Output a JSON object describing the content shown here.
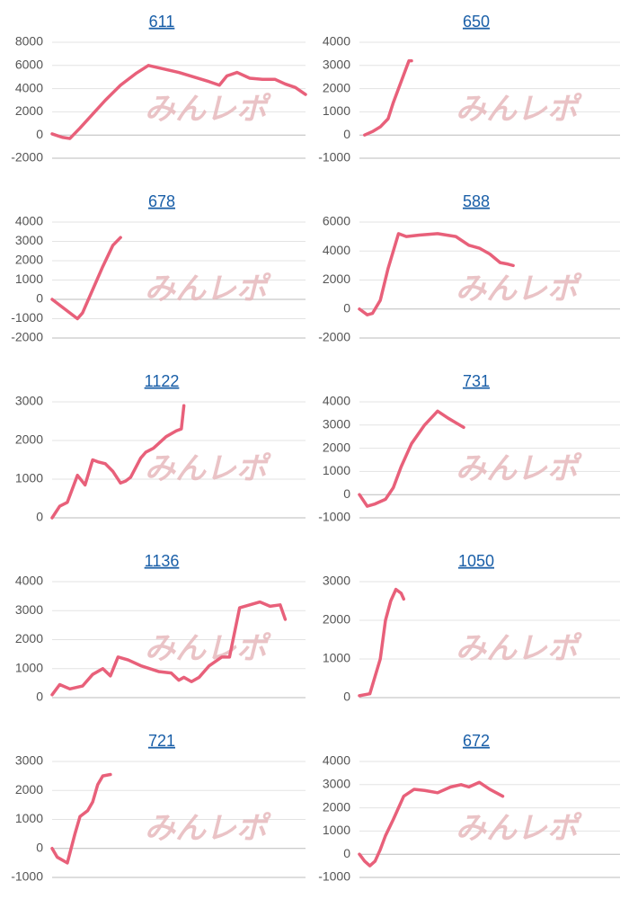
{
  "watermark": "みんレポ",
  "chart_data": [
    {
      "type": "line",
      "title": "611",
      "color": "#e8607a",
      "xlim": [
        0,
        100
      ],
      "ylim": [
        -2000,
        8000
      ],
      "yticks": [
        -2000,
        0,
        2000,
        4000,
        6000,
        8000
      ],
      "x": [
        0,
        4,
        7,
        11,
        16,
        21,
        27,
        33,
        38,
        44,
        50,
        56,
        62,
        66,
        69,
        73,
        78,
        83,
        88,
        92,
        96,
        100
      ],
      "values": [
        100,
        -200,
        -300,
        600,
        1800,
        3000,
        4300,
        5300,
        6000,
        5700,
        5400,
        5000,
        4600,
        4300,
        5100,
        5400,
        4900,
        4800,
        4800,
        4400,
        4100,
        3500
      ]
    },
    {
      "type": "line",
      "title": "650",
      "color": "#e8607a",
      "xlim": [
        0,
        100
      ],
      "ylim": [
        -1000,
        4000
      ],
      "yticks": [
        -1000,
        0,
        1000,
        2000,
        3000,
        4000
      ],
      "x": [
        2,
        5,
        8,
        11,
        13,
        15,
        17,
        19,
        20
      ],
      "values": [
        0,
        150,
        350,
        700,
        1400,
        2000,
        2600,
        3200,
        3200
      ]
    },
    {
      "type": "line",
      "title": "678",
      "color": "#e8607a",
      "xlim": [
        0,
        100
      ],
      "ylim": [
        -2000,
        4000
      ],
      "yticks": [
        -2000,
        -1000,
        0,
        1000,
        2000,
        3000,
        4000
      ],
      "x": [
        0,
        5,
        10,
        12,
        16,
        20,
        24,
        27
      ],
      "values": [
        0,
        -500,
        -1000,
        -700,
        500,
        1700,
        2800,
        3200
      ]
    },
    {
      "type": "line",
      "title": "588",
      "color": "#e8607a",
      "xlim": [
        0,
        100
      ],
      "ylim": [
        -2000,
        6000
      ],
      "yticks": [
        -2000,
        0,
        2000,
        4000,
        6000
      ],
      "x": [
        0,
        3,
        5,
        8,
        11,
        15,
        18,
        23,
        30,
        37,
        42,
        46,
        50,
        54,
        57,
        59
      ],
      "values": [
        0,
        -400,
        -300,
        600,
        2800,
        5200,
        5000,
        5100,
        5200,
        5000,
        4400,
        4200,
        3800,
        3200,
        3100,
        3000
      ]
    },
    {
      "type": "line",
      "title": "1122",
      "color": "#e8607a",
      "xlim": [
        0,
        100
      ],
      "ylim": [
        0,
        3000
      ],
      "yticks": [
        0,
        1000,
        2000,
        3000
      ],
      "x": [
        0,
        3,
        6,
        10,
        13,
        16,
        18,
        21,
        24,
        27,
        29,
        31,
        35,
        37,
        40,
        45,
        49,
        51,
        52
      ],
      "values": [
        0,
        300,
        400,
        1100,
        850,
        1500,
        1450,
        1400,
        1200,
        900,
        950,
        1050,
        1550,
        1700,
        1800,
        2100,
        2250,
        2300,
        2900
      ]
    },
    {
      "type": "line",
      "title": "731",
      "color": "#e8607a",
      "xlim": [
        0,
        100
      ],
      "ylim": [
        -1000,
        4000
      ],
      "yticks": [
        -1000,
        0,
        1000,
        2000,
        3000,
        4000
      ],
      "x": [
        0,
        3,
        6,
        10,
        13,
        16,
        20,
        25,
        30,
        34,
        37,
        40
      ],
      "values": [
        0,
        -500,
        -400,
        -200,
        300,
        1200,
        2200,
        3000,
        3600,
        3300,
        3100,
        2900
      ]
    },
    {
      "type": "line",
      "title": "1136",
      "color": "#e8607a",
      "xlim": [
        0,
        100
      ],
      "ylim": [
        0,
        4000
      ],
      "yticks": [
        0,
        1000,
        2000,
        3000,
        4000
      ],
      "x": [
        0,
        3,
        7,
        12,
        16,
        20,
        23,
        26,
        30,
        35,
        42,
        47,
        50,
        52,
        55,
        58,
        62,
        67,
        70,
        74,
        78,
        82,
        86,
        90,
        92
      ],
      "values": [
        100,
        450,
        300,
        400,
        800,
        1000,
        750,
        1400,
        1300,
        1100,
        900,
        850,
        600,
        700,
        550,
        700,
        1100,
        1400,
        1400,
        3100,
        3200,
        3300,
        3150,
        3200,
        2700
      ]
    },
    {
      "type": "line",
      "title": "1050",
      "color": "#e8607a",
      "xlim": [
        0,
        100
      ],
      "ylim": [
        0,
        3000
      ],
      "yticks": [
        0,
        1000,
        2000,
        3000
      ],
      "x": [
        0,
        4,
        8,
        10,
        12,
        14,
        16,
        17
      ],
      "values": [
        50,
        100,
        1000,
        2000,
        2500,
        2800,
        2700,
        2550
      ]
    },
    {
      "type": "line",
      "title": "721",
      "color": "#e8607a",
      "xlim": [
        0,
        100
      ],
      "ylim": [
        -1000,
        3000
      ],
      "yticks": [
        -1000,
        0,
        1000,
        2000,
        3000
      ],
      "x": [
        0,
        2,
        6,
        9,
        11,
        14,
        16,
        18,
        20,
        23
      ],
      "values": [
        0,
        -300,
        -500,
        500,
        1100,
        1300,
        1600,
        2200,
        2500,
        2550
      ]
    },
    {
      "type": "line",
      "title": "672",
      "color": "#e8607a",
      "xlim": [
        0,
        100
      ],
      "ylim": [
        -1000,
        4000
      ],
      "yticks": [
        -1000,
        0,
        1000,
        2000,
        3000,
        4000
      ],
      "x": [
        0,
        2,
        4,
        6,
        8,
        10,
        13,
        17,
        21,
        25,
        30,
        35,
        39,
        42,
        46,
        50,
        55
      ],
      "values": [
        0,
        -300,
        -500,
        -300,
        200,
        800,
        1500,
        2500,
        2800,
        2750,
        2650,
        2900,
        3000,
        2900,
        3100,
        2800,
        2500
      ]
    }
  ]
}
